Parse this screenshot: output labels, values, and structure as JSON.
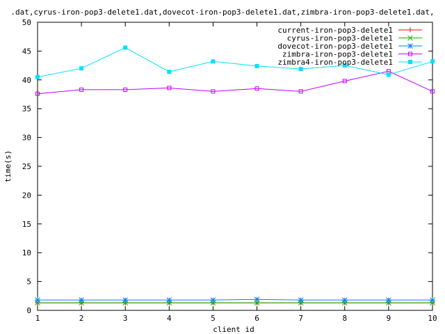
{
  "chart_data": {
    "type": "line",
    "title": ".dat,cyrus-iron-pop3-delete1.dat,dovecot-iron-pop3-delete1.dat,zimbra-iron-pop3-delete1.dat,",
    "xlabel": "client id",
    "ylabel": "time(s)",
    "xlim": [
      1,
      10
    ],
    "ylim": [
      0,
      50
    ],
    "x_ticks": [
      "1",
      "2",
      "3",
      "4",
      "5",
      "6",
      "7",
      "8",
      "9",
      "10"
    ],
    "y_ticks": [
      "0",
      "5",
      "10",
      "15",
      "20",
      "25",
      "30",
      "35",
      "40",
      "45",
      "50"
    ],
    "legend_position": "top-right",
    "grid": false,
    "x": [
      1,
      2,
      3,
      4,
      5,
      6,
      7,
      8,
      9,
      10
    ],
    "series": [
      {
        "name": "current-iron-pop3-delete1",
        "color": "#ff0000",
        "marker": "plus",
        "values": [
          1.3,
          1.3,
          1.3,
          1.3,
          1.3,
          1.3,
          1.3,
          1.3,
          1.3,
          1.3
        ]
      },
      {
        "name": "cyrus-iron-pop3-delete1",
        "color": "#00c000",
        "marker": "cross",
        "values": [
          1.3,
          1.3,
          1.3,
          1.3,
          1.3,
          1.3,
          1.3,
          1.3,
          1.3,
          1.3
        ]
      },
      {
        "name": "dovecot-iron-pop3-delete1",
        "color": "#0080ff",
        "marker": "star",
        "values": [
          1.8,
          1.8,
          1.8,
          1.8,
          1.8,
          1.9,
          1.8,
          1.8,
          1.8,
          1.8
        ]
      },
      {
        "name": "zimbra-iron-pop3-delete1",
        "color": "#c000ff",
        "marker": "square",
        "values": [
          37.6,
          38.3,
          38.3,
          38.6,
          38.0,
          38.5,
          38.0,
          39.8,
          41.5,
          38.0
        ]
      },
      {
        "name": "zimbra4-iron-pop3-delete1",
        "color": "#00e0ff",
        "marker": "filled-square",
        "values": [
          40.5,
          42.0,
          45.6,
          41.4,
          43.2,
          42.4,
          41.9,
          42.5,
          40.9,
          43.2
        ]
      }
    ]
  }
}
